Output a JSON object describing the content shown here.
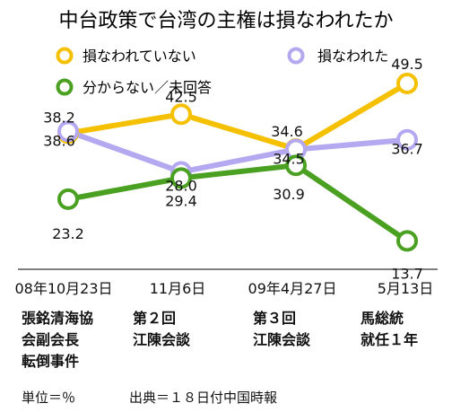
{
  "chart_data": {
    "type": "line",
    "title": "中台政策で台湾の主権は損なわれたか",
    "categories": [
      "08年10月23日",
      "11月6日",
      "09年4月27日",
      "5月13日"
    ],
    "events": [
      [
        "張銘清海協",
        "会副会長",
        "転倒事件"
      ],
      [
        "第２回",
        "江陳会談"
      ],
      [
        "第３回",
        "江陳会談"
      ],
      [
        "馬総統",
        "就任１年"
      ]
    ],
    "series": [
      {
        "name": "損なわれていない",
        "color": "#f5c000",
        "values": [
          38.2,
          42.5,
          34.6,
          49.5
        ],
        "labels": [
          "38.2",
          "42.5",
          "34.6",
          "49.5"
        ]
      },
      {
        "name": "損なわれた",
        "color": "#b4a8f0",
        "values": [
          38.6,
          29.4,
          34.5,
          36.7
        ],
        "labels": [
          "38.6",
          "29.4",
          "34.5",
          "36.7"
        ]
      },
      {
        "name": "分からない／未回答",
        "color": "#4aa020",
        "values": [
          23.2,
          28.0,
          30.9,
          13.7
        ],
        "labels": [
          "23.2",
          "28.0",
          "30.9",
          "13.7"
        ]
      }
    ],
    "unit_note": "単位＝％",
    "source": "出典＝１８日付中国時報",
    "grid": false
  }
}
